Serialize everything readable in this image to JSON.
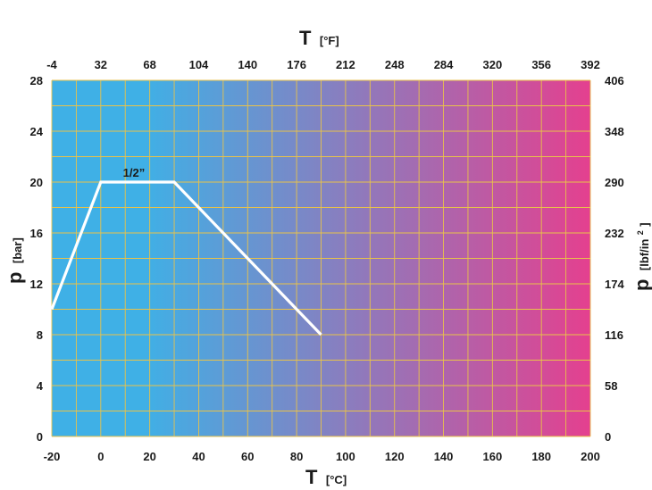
{
  "chart_data": {
    "type": "line",
    "x_bottom": {
      "label": "T",
      "unit": "[°C]",
      "ticks": [
        -20,
        0,
        20,
        40,
        60,
        80,
        100,
        120,
        140,
        160,
        180,
        200
      ],
      "range": [
        -20,
        200
      ]
    },
    "x_top": {
      "label": "T",
      "unit": "[°F]",
      "ticks": [
        -4,
        32,
        68,
        104,
        140,
        176,
        212,
        248,
        284,
        320,
        356,
        392
      ]
    },
    "y_left": {
      "label": "p",
      "unit": "[bar]",
      "ticks": [
        0,
        4,
        8,
        12,
        16,
        20,
        24,
        28
      ],
      "range": [
        0,
        28
      ]
    },
    "y_right": {
      "label": "p",
      "unit_main": "[lbf/in",
      "unit_sup": "2",
      "unit_end": "]",
      "ticks": [
        0,
        58,
        116,
        174,
        232,
        290,
        348,
        406
      ]
    },
    "grid": true,
    "gradient": {
      "from": "#3fb0e6",
      "to": "#e4408f"
    },
    "grid_color": "#e8c24a",
    "series": [
      {
        "name": "1/2”",
        "color": "#ffffff",
        "points": [
          {
            "x": -20,
            "y": 10
          },
          {
            "x": 0,
            "y": 20
          },
          {
            "x": 30,
            "y": 20
          },
          {
            "x": 90,
            "y": 8
          }
        ]
      }
    ]
  }
}
